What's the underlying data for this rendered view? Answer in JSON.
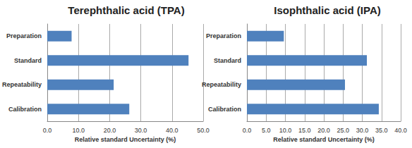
{
  "chart_data": [
    {
      "type": "bar",
      "title": "Terephthalic acid (TPA)",
      "orientation": "horizontal",
      "categories": [
        "Preparation",
        "Standard",
        "Repeatability",
        "Calibration"
      ],
      "values": [
        7.8,
        45.3,
        21.3,
        26.3
      ],
      "color": "#4f81bd",
      "xlabel": "Relative standard Uncertainty (%)",
      "xlim": [
        0,
        50
      ],
      "xticks": [
        {
          "value": 0,
          "label": "0.0"
        },
        {
          "value": 10,
          "label": "10.0"
        },
        {
          "value": 20,
          "label": "20.0"
        },
        {
          "value": 30,
          "label": "30.0"
        },
        {
          "value": 40,
          "label": "40.0"
        },
        {
          "value": 50,
          "label": "50.0"
        }
      ],
      "grid": true
    },
    {
      "type": "bar",
      "title": "Isophthalic acid (IPA)",
      "orientation": "horizontal",
      "categories": [
        "Preparation",
        "Standard",
        "Repeatability",
        "Calibration"
      ],
      "values": [
        9.6,
        31.2,
        25.5,
        34.3
      ],
      "color": "#4f81bd",
      "xlabel": "Relative standard Uncertainty (%)",
      "xlim": [
        0,
        40
      ],
      "xticks": [
        {
          "value": 0,
          "label": "0.0"
        },
        {
          "value": 5,
          "label": "5.0"
        },
        {
          "value": 10,
          "label": "10.0"
        },
        {
          "value": 15,
          "label": "15.0"
        },
        {
          "value": 20,
          "label": "20.0"
        },
        {
          "value": 25,
          "label": "25.0"
        },
        {
          "value": 30,
          "label": "30.0"
        },
        {
          "value": 35,
          "label": "35.0"
        },
        {
          "value": 40,
          "label": "40.0"
        }
      ],
      "grid": true
    }
  ]
}
